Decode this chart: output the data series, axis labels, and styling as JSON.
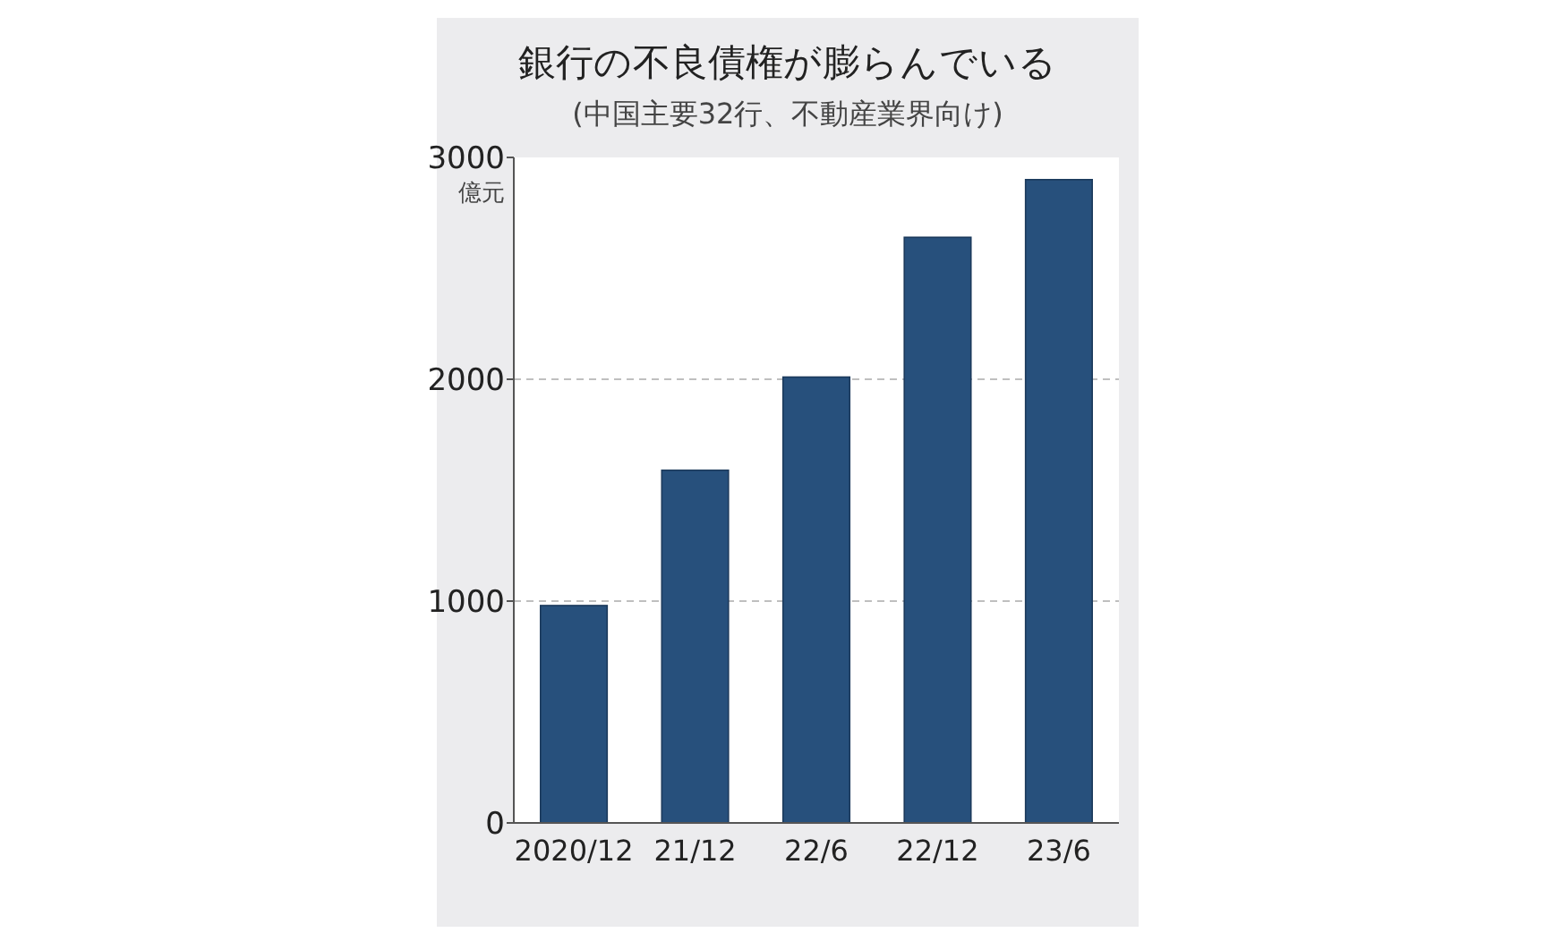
{
  "chart_data": {
    "type": "bar",
    "title": "銀行の不良債権が膨らんでいる",
    "subtitle": "(中国主要32行、不動産業界向け)",
    "ylabel": "億元",
    "categories": [
      "2020/12",
      "21/12",
      "22/6",
      "22/12",
      "23/6"
    ],
    "values": [
      980,
      1590,
      2010,
      2640,
      2900
    ],
    "color": "#27507c",
    "ylim": [
      0,
      3000
    ],
    "yticks": [
      0,
      1000,
      2000,
      3000
    ],
    "grid": "y"
  }
}
